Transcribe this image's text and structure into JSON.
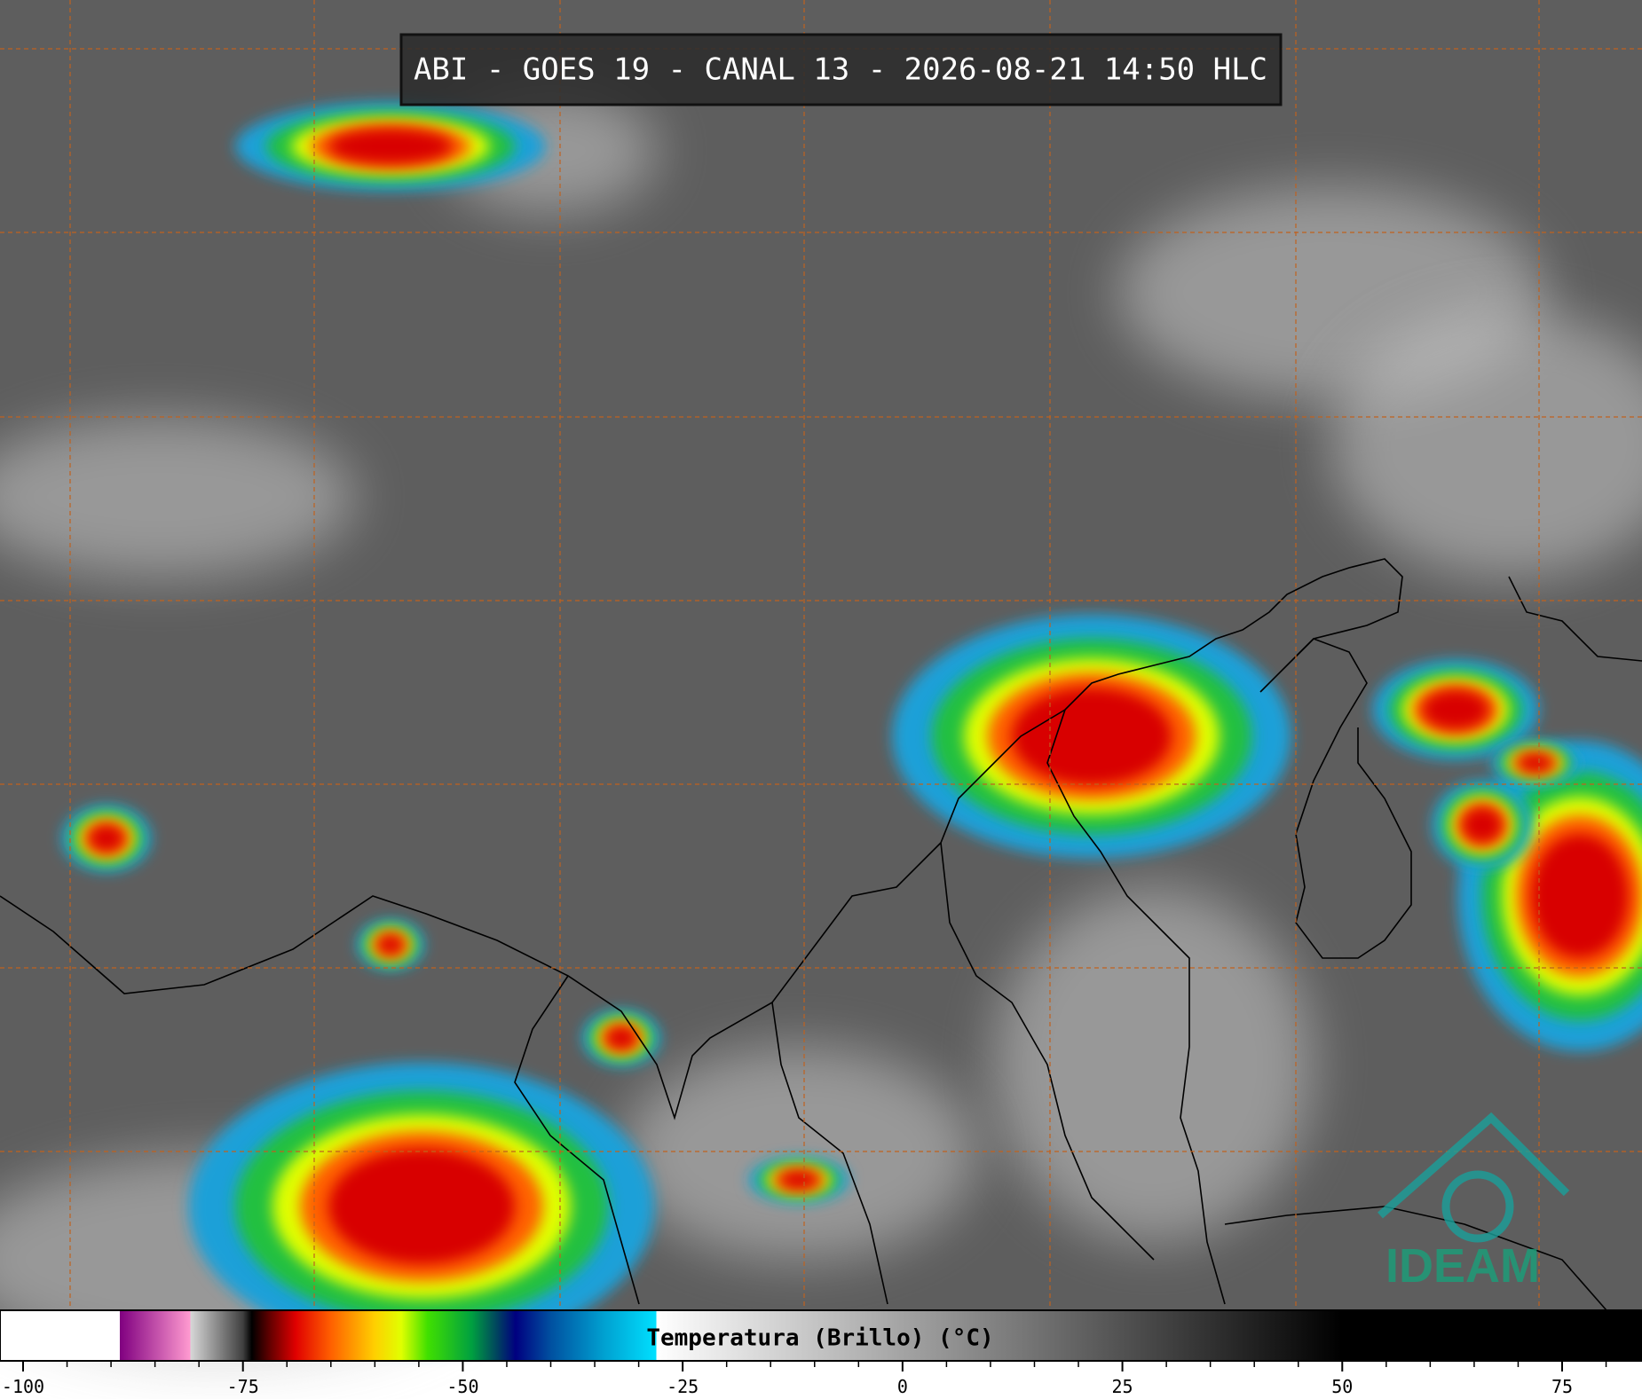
{
  "header": {
    "title": "ABI - GOES 19 - CANAL 13 - 2026-08-21 14:50 HLC"
  },
  "logo": {
    "text": "IDEAM"
  },
  "colorbar": {
    "label": "Temperatura (Brillo) (°C)",
    "lim": [
      -100,
      84
    ],
    "ticks": [
      -100,
      -75,
      -50,
      -25,
      0,
      25,
      50,
      75
    ],
    "minor_ticks": [
      -95,
      -90,
      -85,
      -80,
      -70,
      -65,
      -60,
      -55,
      -45,
      -40,
      -35,
      -30,
      -20,
      -15,
      -10,
      -5,
      5,
      10,
      15,
      20,
      30,
      35,
      40,
      45,
      55,
      60,
      65,
      70,
      80
    ],
    "colorscale": [
      {
        "value": -100,
        "color": "#ffffff"
      },
      {
        "value": -89,
        "color": "#ffffff"
      },
      {
        "value": -89,
        "color": "#800080"
      },
      {
        "value": -81,
        "color": "#ff9ad0"
      },
      {
        "value": -81,
        "color": "#d8d8d8"
      },
      {
        "value": -75,
        "color": "#404040"
      },
      {
        "value": -74,
        "color": "#000000"
      },
      {
        "value": -72,
        "color": "#600000"
      },
      {
        "value": -69,
        "color": "#e00000"
      },
      {
        "value": -65,
        "color": "#ff6000"
      },
      {
        "value": -60,
        "color": "#ffd000"
      },
      {
        "value": -57,
        "color": "#e0ff00"
      },
      {
        "value": -54,
        "color": "#40e000"
      },
      {
        "value": -49,
        "color": "#00a040"
      },
      {
        "value": -46,
        "color": "#004060"
      },
      {
        "value": -44,
        "color": "#000080"
      },
      {
        "value": -40,
        "color": "#0050a0"
      },
      {
        "value": -34,
        "color": "#00a0d0"
      },
      {
        "value": -28,
        "color": "#00e0ff"
      },
      {
        "value": -28,
        "color": "#ffffff"
      },
      {
        "value": 50,
        "color": "#000000"
      },
      {
        "value": 84,
        "color": "#000000"
      }
    ]
  }
}
